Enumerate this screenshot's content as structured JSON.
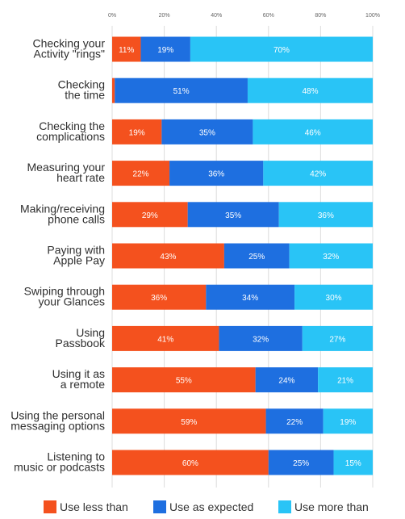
{
  "colors": {
    "less": "#f4511e",
    "expected": "#1e6fe0",
    "more": "#29c4f6",
    "grid": "#dcdcdc"
  },
  "legend": {
    "less": "Use less than",
    "expected": "Use as expected",
    "more": "Use more than"
  },
  "chart_data": {
    "type": "bar",
    "orientation": "horizontal",
    "stacked": true,
    "categories": [
      "Checking your\nActivity \"rings\"",
      "Checking\nthe time",
      "Checking the\ncomplications",
      "Measuring your\nheart rate",
      "Making/receiving\nphone calls",
      "Paying with\nApple Pay",
      "Swiping through\nyour Glances",
      "Using\nPassbook",
      "Using it as\na remote",
      "Using the personal\nmessaging options",
      "Listening to\nmusic or podcasts"
    ],
    "series": [
      {
        "name": "Use less than",
        "values": [
          11,
          1,
          19,
          22,
          29,
          43,
          36,
          41,
          55,
          59,
          60
        ],
        "labels": [
          "11%",
          "",
          "19%",
          "22%",
          "29%",
          "43%",
          "36%",
          "41%",
          "55%",
          "59%",
          "60%"
        ]
      },
      {
        "name": "Use as expected",
        "values": [
          19,
          51,
          35,
          36,
          35,
          25,
          34,
          32,
          24,
          22,
          25
        ],
        "labels": [
          "19%",
          "51%",
          "35%",
          "36%",
          "35%",
          "25%",
          "34%",
          "32%",
          "24%",
          "22%",
          "25%"
        ]
      },
      {
        "name": "Use more than",
        "values": [
          70,
          48,
          46,
          42,
          36,
          32,
          30,
          27,
          21,
          19,
          15
        ],
        "labels": [
          "70%",
          "48%",
          "46%",
          "42%",
          "36%",
          "32%",
          "30%",
          "27%",
          "21%",
          "19%",
          "15%"
        ]
      }
    ],
    "xlim": [
      0,
      100
    ],
    "xticks": [
      "0%",
      "20%",
      "40%",
      "60%",
      "80%",
      "100%"
    ],
    "xtick_values": [
      0,
      20,
      40,
      60,
      80,
      100
    ],
    "grid": true,
    "legend_position": "bottom"
  }
}
